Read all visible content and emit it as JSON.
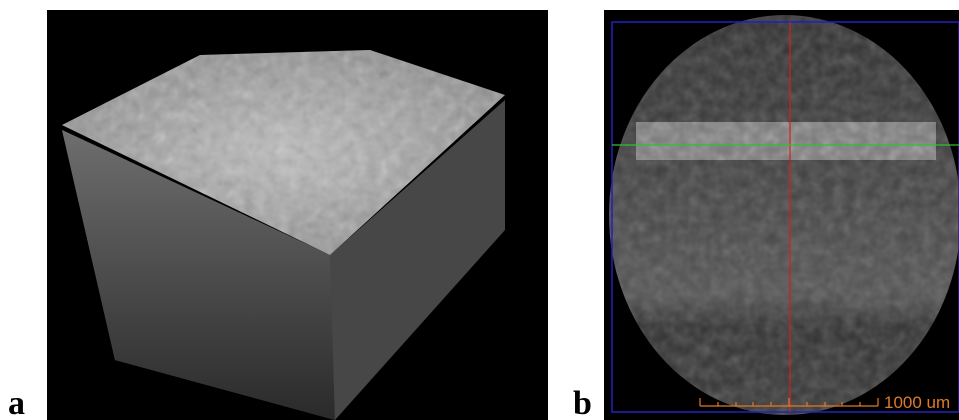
{
  "panels": {
    "a": {
      "label": "a"
    },
    "b": {
      "label": "b",
      "scale_bar": {
        "label": "1000 um"
      }
    }
  }
}
